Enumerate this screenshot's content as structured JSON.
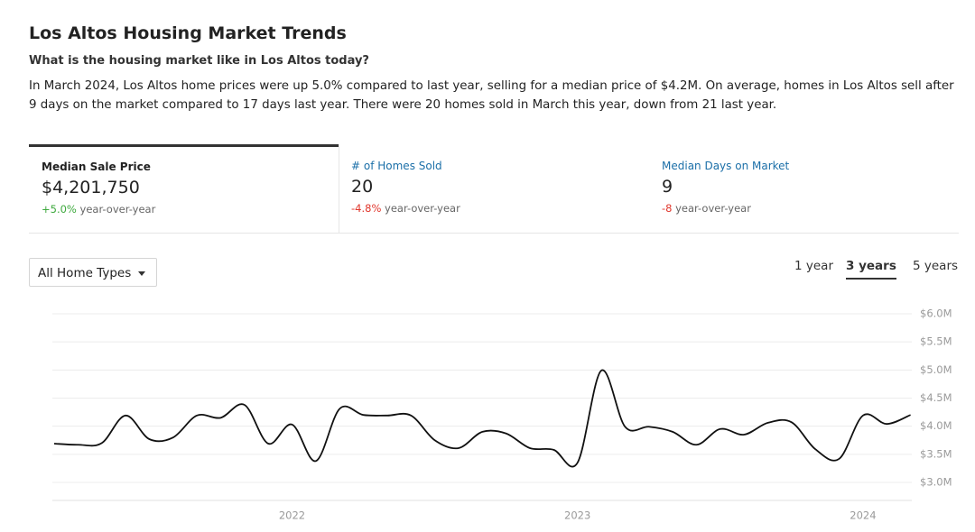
{
  "header": {
    "title": "Los Altos Housing Market Trends",
    "subtitle": "What is the housing market like in Los Altos today?",
    "description": "In March 2024, Los Altos home prices were up 5.0% compared to last year, selling for a median price of $4.2M. On average, homes in Los Altos sell after 9 days on the market compared to 17 days last year. There were 20 homes sold in March this year, down from 21 last year."
  },
  "tabs": [
    {
      "label": "Median Sale Price",
      "value": "$4,201,750",
      "change": "+5.0%",
      "suffix": "year-over-year"
    },
    {
      "label": "# of Homes Sold",
      "value": "20",
      "change": "-4.8%",
      "suffix": "year-over-year"
    },
    {
      "label": "Median Days on Market",
      "value": "9",
      "change": "-8",
      "suffix": "year-over-year"
    }
  ],
  "filter": "All Home Types",
  "ranges": [
    "1 year",
    "3 years",
    "5 years"
  ],
  "chart_data": {
    "type": "line",
    "categories": [
      null,
      null,
      null,
      null,
      null,
      null,
      null,
      null,
      null,
      null,
      "2022",
      null,
      null,
      null,
      null,
      null,
      null,
      null,
      null,
      null,
      null,
      null,
      "2023",
      null,
      null,
      null,
      null,
      null,
      null,
      null,
      null,
      null,
      null,
      null,
      "2024",
      null,
      null
    ],
    "values": [
      3.69,
      3.67,
      3.7,
      4.19,
      3.77,
      3.8,
      4.19,
      4.15,
      4.38,
      3.69,
      4.03,
      3.38,
      4.31,
      4.2,
      4.19,
      4.19,
      3.75,
      3.61,
      3.9,
      3.87,
      3.61,
      3.58,
      3.35,
      4.99,
      3.99,
      3.99,
      3.9,
      3.67,
      3.95,
      3.85,
      4.06,
      4.07,
      3.59,
      3.42,
      4.19,
      4.04,
      4.2
    ],
    "color": "#111111",
    "ylim": [
      3.0,
      6.0
    ],
    "yticks": [
      {
        "value": 3.0,
        "label": "$3.0M"
      },
      {
        "value": 3.5,
        "label": "$3.5M"
      },
      {
        "value": 4.0,
        "label": "$4.0M"
      },
      {
        "value": 4.5,
        "label": "$4.5M"
      },
      {
        "value": 5.0,
        "label": "$5.0M"
      },
      {
        "value": 5.5,
        "label": "$5.5M"
      },
      {
        "value": 6.0,
        "label": "$6.0M"
      }
    ],
    "grid": true
  }
}
